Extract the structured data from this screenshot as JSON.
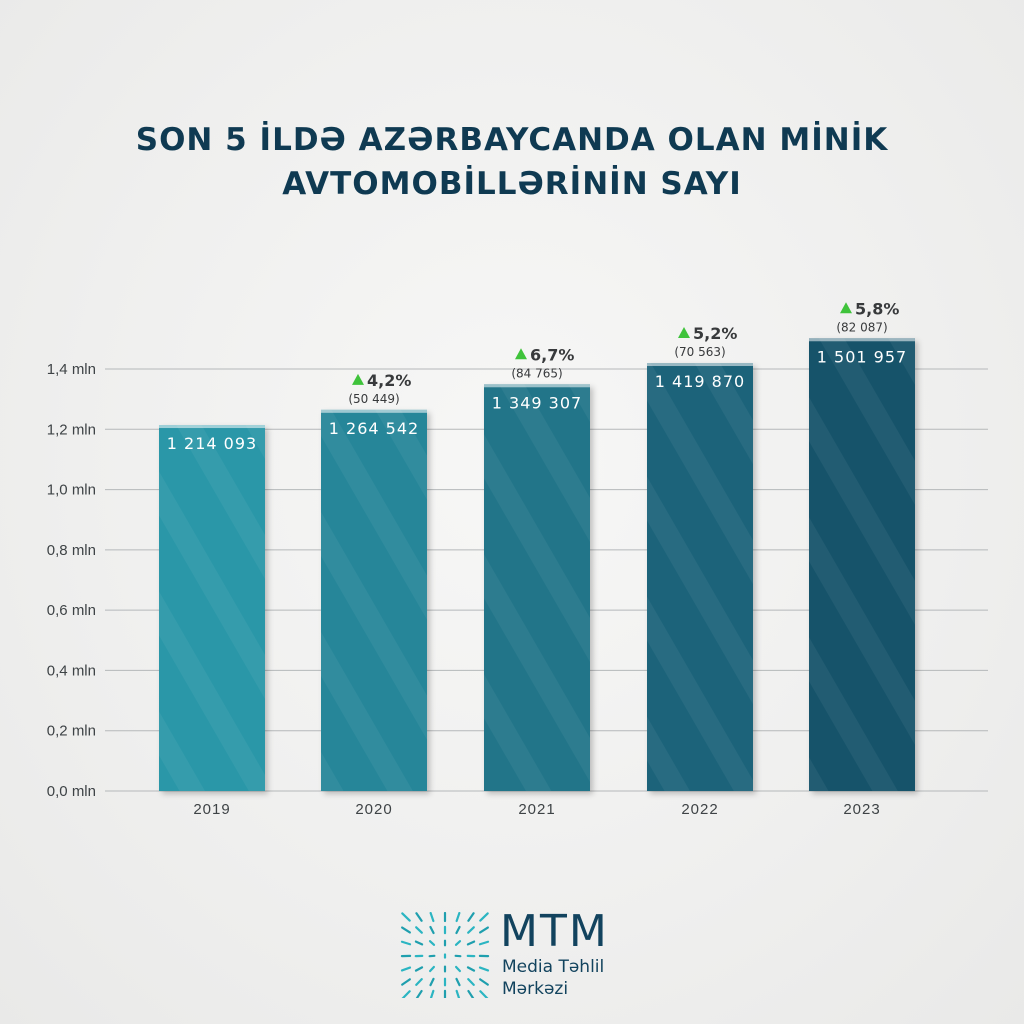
{
  "title": {
    "line1": "SON 5 İLDƏ AZƏRBAYCANDA OLAN MİNİK",
    "line2": "AVTOMOBİLLƏRİNİN SAYI"
  },
  "chart_data": {
    "type": "bar",
    "categories": [
      "2019",
      "2020",
      "2021",
      "2022",
      "2023"
    ],
    "values": [
      1214093,
      1264542,
      1349307,
      1419870,
      1501957
    ],
    "value_labels": [
      "1 214 093",
      "1 264 542",
      "1 349 307",
      "1 419 870",
      "1 501 957"
    ],
    "growth_labels": [
      "",
      "4,2%",
      "6,7%",
      "5,2%",
      "5,8%"
    ],
    "change_labels": [
      "",
      "(50 449)",
      "(84 765)",
      "(70 563)",
      "(82 087)"
    ],
    "yticks": [
      0,
      200000,
      400000,
      600000,
      800000,
      1000000,
      1200000,
      1400000
    ],
    "ytick_labels": [
      "0,0 mln",
      "0,2 mln",
      "0,4 mln",
      "0,6 mln",
      "0,8 mln",
      "1,0 mln",
      "1,2 mln",
      "1,4 mln"
    ],
    "ylim": [
      0,
      1400000
    ],
    "grid": true,
    "colors": {
      "bar_light": "#2a97a8",
      "bar_dark": "#17536a",
      "gridline": "#b5b8ba",
      "tick_text": "#3e4346",
      "up_arrow": "#3fc33b",
      "growth_text": "#383a3c",
      "value_text": "#ffffff"
    }
  },
  "logo": {
    "main": "MTM",
    "sub_line1": "Media Təhlil",
    "sub_line2": "Mərkəzi"
  }
}
